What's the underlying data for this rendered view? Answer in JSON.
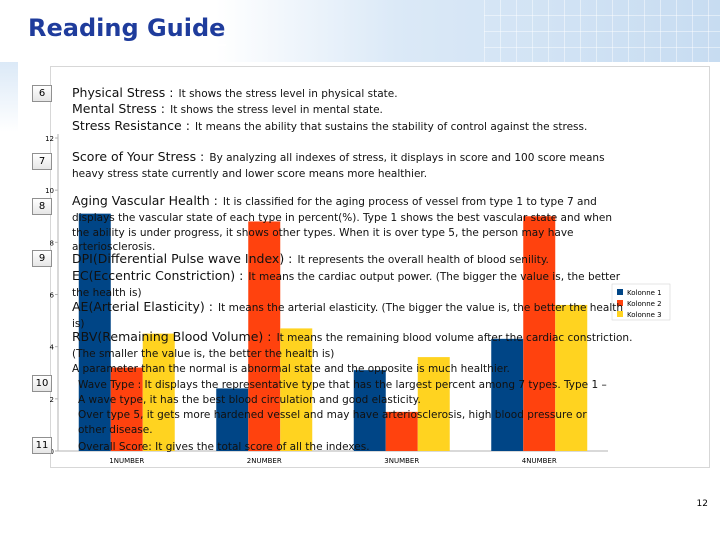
{
  "title": "Reading Guide",
  "page_number": "12",
  "markers": [
    "6",
    "7",
    "8",
    "9",
    "10",
    "11"
  ],
  "items": {
    "physical": {
      "key": "Physical Stress :",
      "desc": "It shows the stress level in physical state."
    },
    "mental": {
      "key": "Mental Stress :",
      "desc": "It shows the stress level in mental state."
    },
    "resistance": {
      "key": "Stress Resistance :",
      "desc": "It means the ability that sustains the stability of control against the stress."
    },
    "score_1": {
      "key": "Score of Your Stress :",
      "desc": "By analyzing all indexes of stress, it displays in score and 100 score means"
    },
    "score_2": "heavy stress state currently and lower score means more healthier.",
    "aging_1": {
      "key": "Aging Vascular Health :",
      "desc": "It is classified for the aging process of vessel from type 1 to type 7 and"
    },
    "aging_2": "displays the vascular state of each type in percent(%).  Type 1 shows the best vascular state and when",
    "aging_3": "the ability is under progress, it shows other types. When it is over type 5, the person may have",
    "aging_4": "arteriosclerosis.",
    "dpi_1": {
      "key": "DPI(Differential Pulse wave Index) :",
      "desc": "It represents the overall health of blood senility."
    },
    "ec_1": {
      "key": "EC(Eccentric Constriction) :",
      "desc": "It means the cardiac output power. (The bigger the value is, the better"
    },
    "ec_2": "the health is)",
    "ae_1": {
      "key": "AE(Arterial Elasticity) :",
      "desc": "It means the arterial elasticity. (The bigger the value is, the better the health"
    },
    "ae_2": "is)",
    "rbv_1": {
      "key": "RBV(Remaining Blood Volume) :",
      "desc": "It means the remaining blood volume after the cardiac constriction."
    },
    "rbv_2": "(The smaller the value is, the better the health is)",
    "rbv_3": "A parameter than the normal is abnormal state and the opposite is much healthier.",
    "line10_1": "Wave Type : It displays the representative type that has the largest percent among 7 types. Type 1 –",
    "line10_2": "A wave type, it has the best blood circulation and good elasticity.",
    "line10_3": "Over type 5, it gets more hardened vessel and may have arteriosclerosis, high blood pressure or",
    "line10_4": "other disease.",
    "line11_1": "Overall Score: It gives the total score of all the indexes."
  },
  "chart_data": {
    "type": "bar",
    "categories": [
      "1NUMBER",
      "2NUMBER",
      "3NUMBER",
      "4NUMBER"
    ],
    "series": [
      {
        "name": "Kolonne 1",
        "values": [
          9.1,
          2.4,
          3.1,
          4.3
        ]
      },
      {
        "name": "Kolonne 2",
        "values": [
          3.2,
          8.8,
          1.5,
          9.0
        ]
      },
      {
        "name": "Kolonne 3",
        "values": [
          4.5,
          4.7,
          3.6,
          5.6
        ]
      }
    ],
    "y_ticks": [
      "0",
      "2",
      "4",
      "6",
      "8",
      "10",
      "12"
    ],
    "ylim": [
      0,
      12
    ],
    "colors": [
      "#004586",
      "#ff420e",
      "#ffd320"
    ],
    "legend_position": "right",
    "grid": false
  }
}
